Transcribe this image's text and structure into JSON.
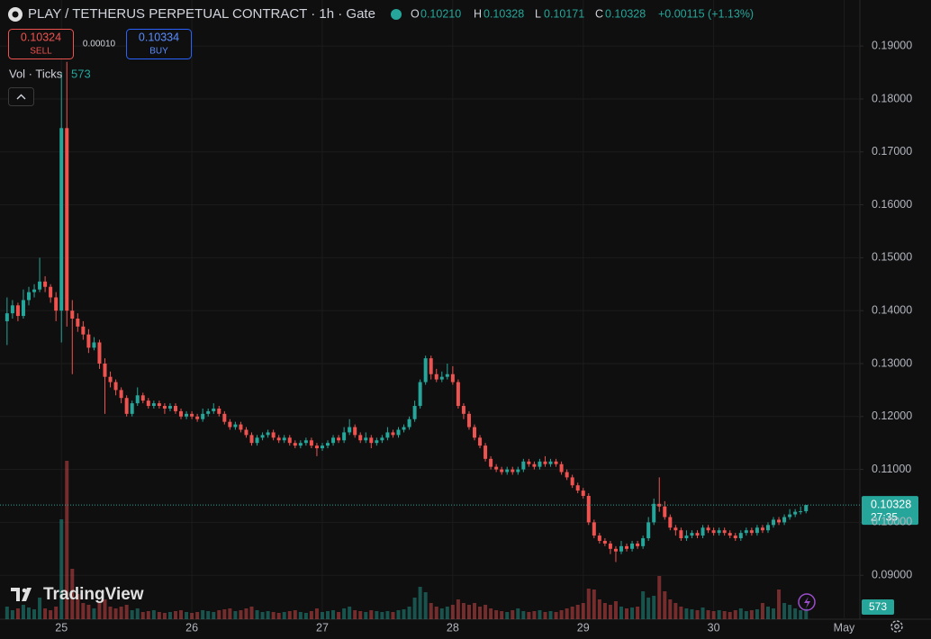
{
  "header": {
    "title": "PLAY / TETHERUS PERPETUAL CONTRACT · 1h · Gate",
    "ohlc": [
      {
        "label": "O",
        "value": "0.10210"
      },
      {
        "label": "H",
        "value": "0.10328"
      },
      {
        "label": "L",
        "value": "0.10171"
      },
      {
        "label": "C",
        "value": "0.10328"
      }
    ],
    "change": "+0.00115 (+1.13%)"
  },
  "trade": {
    "sell_price": "0.10324",
    "sell_label": "SELL",
    "spread": "0.00010",
    "buy_price": "0.10334",
    "buy_label": "BUY"
  },
  "volume_legend": "Vol · Ticks",
  "logo": "TradingView",
  "countdown": "27:35",
  "chart_data": {
    "type": "candlestick",
    "ohlc": [
      [
        0.138,
        0.1425,
        0.1335,
        0.1395
      ],
      [
        0.1395,
        0.142,
        0.1385,
        0.141
      ],
      [
        0.141,
        0.1415,
        0.138,
        0.139
      ],
      [
        0.139,
        0.144,
        0.1385,
        0.142
      ],
      [
        0.142,
        0.1445,
        0.141,
        0.1435
      ],
      [
        0.1435,
        0.145,
        0.1425,
        0.144
      ],
      [
        0.144,
        0.15,
        0.1435,
        0.1455
      ],
      [
        0.1455,
        0.1465,
        0.1435,
        0.1445
      ],
      [
        0.1445,
        0.145,
        0.1415,
        0.1425
      ],
      [
        0.1425,
        0.1435,
        0.138,
        0.14
      ],
      [
        0.14,
        0.185,
        0.134,
        0.1745
      ],
      [
        0.1745,
        0.187,
        0.137,
        0.14
      ],
      [
        0.14,
        0.142,
        0.128,
        0.1385
      ],
      [
        0.1385,
        0.1395,
        0.136,
        0.137
      ],
      [
        0.137,
        0.138,
        0.1345,
        0.1355
      ],
      [
        0.1355,
        0.1365,
        0.132,
        0.133
      ],
      [
        0.133,
        0.135,
        0.1325,
        0.134
      ],
      [
        0.134,
        0.1345,
        0.129,
        0.13
      ],
      [
        0.13,
        0.131,
        0.1205,
        0.1275
      ],
      [
        0.1275,
        0.1285,
        0.1255,
        0.1265
      ],
      [
        0.1265,
        0.127,
        0.124,
        0.125
      ],
      [
        0.125,
        0.1255,
        0.1225,
        0.1235
      ],
      [
        0.1235,
        0.124,
        0.12,
        0.1205
      ],
      [
        0.1205,
        0.123,
        0.12,
        0.1225
      ],
      [
        0.1225,
        0.1255,
        0.122,
        0.124
      ],
      [
        0.124,
        0.1245,
        0.1225,
        0.123
      ],
      [
        0.123,
        0.1235,
        0.1215,
        0.122
      ],
      [
        0.122,
        0.123,
        0.1215,
        0.1225
      ],
      [
        0.1225,
        0.123,
        0.1215,
        0.122
      ],
      [
        0.122,
        0.1225,
        0.1205,
        0.1215
      ],
      [
        0.1215,
        0.1225,
        0.121,
        0.122
      ],
      [
        0.122,
        0.1225,
        0.1205,
        0.121
      ],
      [
        0.121,
        0.1215,
        0.1195,
        0.12
      ],
      [
        0.12,
        0.121,
        0.1195,
        0.1205
      ],
      [
        0.1205,
        0.121,
        0.1195,
        0.12
      ],
      [
        0.12,
        0.1205,
        0.119,
        0.1195
      ],
      [
        0.1195,
        0.1215,
        0.119,
        0.1205
      ],
      [
        0.1205,
        0.1215,
        0.12,
        0.121
      ],
      [
        0.121,
        0.1225,
        0.1205,
        0.1215
      ],
      [
        0.1215,
        0.122,
        0.12,
        0.1205
      ],
      [
        0.1205,
        0.121,
        0.1185,
        0.119
      ],
      [
        0.119,
        0.1195,
        0.1175,
        0.118
      ],
      [
        0.118,
        0.119,
        0.1175,
        0.1185
      ],
      [
        0.1185,
        0.119,
        0.117,
        0.1175
      ],
      [
        0.1175,
        0.118,
        0.116,
        0.1165
      ],
      [
        0.1165,
        0.117,
        0.1145,
        0.115
      ],
      [
        0.115,
        0.1165,
        0.1145,
        0.116
      ],
      [
        0.116,
        0.117,
        0.1155,
        0.1165
      ],
      [
        0.1165,
        0.1175,
        0.116,
        0.117
      ],
      [
        0.117,
        0.1175,
        0.1155,
        0.116
      ],
      [
        0.116,
        0.1165,
        0.115,
        0.1155
      ],
      [
        0.1155,
        0.1165,
        0.115,
        0.116
      ],
      [
        0.116,
        0.1165,
        0.1145,
        0.115
      ],
      [
        0.115,
        0.1155,
        0.114,
        0.1145
      ],
      [
        0.1145,
        0.1155,
        0.114,
        0.115
      ],
      [
        0.115,
        0.116,
        0.1145,
        0.1155
      ],
      [
        0.1155,
        0.116,
        0.114,
        0.1145
      ],
      [
        0.1145,
        0.115,
        0.1125,
        0.114
      ],
      [
        0.114,
        0.115,
        0.1135,
        0.1145
      ],
      [
        0.1145,
        0.1155,
        0.114,
        0.115
      ],
      [
        0.115,
        0.1165,
        0.1145,
        0.116
      ],
      [
        0.116,
        0.1165,
        0.115,
        0.1155
      ],
      [
        0.1155,
        0.118,
        0.115,
        0.117
      ],
      [
        0.117,
        0.1195,
        0.1165,
        0.118
      ],
      [
        0.118,
        0.1185,
        0.116,
        0.1165
      ],
      [
        0.1165,
        0.117,
        0.115,
        0.1155
      ],
      [
        0.1155,
        0.117,
        0.115,
        0.116
      ],
      [
        0.116,
        0.1165,
        0.114,
        0.115
      ],
      [
        0.115,
        0.116,
        0.1145,
        0.1155
      ],
      [
        0.1155,
        0.1165,
        0.115,
        0.116
      ],
      [
        0.116,
        0.118,
        0.1155,
        0.117
      ],
      [
        0.117,
        0.1175,
        0.116,
        0.1165
      ],
      [
        0.1165,
        0.118,
        0.116,
        0.1175
      ],
      [
        0.1175,
        0.1185,
        0.117,
        0.118
      ],
      [
        0.118,
        0.12,
        0.1175,
        0.1195
      ],
      [
        0.1195,
        0.123,
        0.119,
        0.122
      ],
      [
        0.122,
        0.127,
        0.1215,
        0.1265
      ],
      [
        0.1265,
        0.1315,
        0.126,
        0.131
      ],
      [
        0.131,
        0.1315,
        0.127,
        0.128
      ],
      [
        0.128,
        0.129,
        0.1265,
        0.127
      ],
      [
        0.127,
        0.1285,
        0.1265,
        0.1275
      ],
      [
        0.1275,
        0.13,
        0.127,
        0.128
      ],
      [
        0.128,
        0.1295,
        0.126,
        0.1265
      ],
      [
        0.1265,
        0.127,
        0.1215,
        0.122
      ],
      [
        0.122,
        0.1225,
        0.1195,
        0.1205
      ],
      [
        0.1205,
        0.121,
        0.1175,
        0.118
      ],
      [
        0.118,
        0.1185,
        0.1155,
        0.116
      ],
      [
        0.116,
        0.1165,
        0.114,
        0.1145
      ],
      [
        0.1145,
        0.115,
        0.1115,
        0.112
      ],
      [
        0.112,
        0.1125,
        0.11,
        0.1105
      ],
      [
        0.1105,
        0.111,
        0.1095,
        0.11
      ],
      [
        0.11,
        0.1105,
        0.109,
        0.1095
      ],
      [
        0.1095,
        0.1105,
        0.109,
        0.11
      ],
      [
        0.11,
        0.1105,
        0.109,
        0.1095
      ],
      [
        0.1095,
        0.1105,
        0.109,
        0.11
      ],
      [
        0.11,
        0.112,
        0.1095,
        0.1115
      ],
      [
        0.1115,
        0.112,
        0.1105,
        0.111
      ],
      [
        0.111,
        0.1115,
        0.11,
        0.1105
      ],
      [
        0.1105,
        0.112,
        0.11,
        0.1115
      ],
      [
        0.1115,
        0.1125,
        0.1105,
        0.111
      ],
      [
        0.111,
        0.112,
        0.1105,
        0.1115
      ],
      [
        0.1115,
        0.112,
        0.1105,
        0.111
      ],
      [
        0.111,
        0.1115,
        0.109,
        0.1095
      ],
      [
        0.1095,
        0.11,
        0.108,
        0.1085
      ],
      [
        0.1085,
        0.109,
        0.1065,
        0.107
      ],
      [
        0.107,
        0.1075,
        0.1055,
        0.106
      ],
      [
        0.106,
        0.1065,
        0.1045,
        0.105
      ],
      [
        0.105,
        0.1055,
        0.0995,
        0.1
      ],
      [
        0.1,
        0.1005,
        0.097,
        0.0975
      ],
      [
        0.0975,
        0.098,
        0.096,
        0.0965
      ],
      [
        0.0965,
        0.097,
        0.0955,
        0.096
      ],
      [
        0.096,
        0.0965,
        0.094,
        0.095
      ],
      [
        0.095,
        0.0955,
        0.0925,
        0.0945
      ],
      [
        0.0945,
        0.0965,
        0.094,
        0.0955
      ],
      [
        0.0955,
        0.096,
        0.0945,
        0.095
      ],
      [
        0.095,
        0.0965,
        0.0945,
        0.096
      ],
      [
        0.096,
        0.0965,
        0.095,
        0.0955
      ],
      [
        0.0955,
        0.0975,
        0.095,
        0.097
      ],
      [
        0.097,
        0.101,
        0.0965,
        0.1
      ],
      [
        0.1,
        0.1045,
        0.0995,
        0.1035
      ],
      [
        0.1035,
        0.1085,
        0.102,
        0.103
      ],
      [
        0.103,
        0.104,
        0.1005,
        0.101
      ],
      [
        0.101,
        0.1015,
        0.0985,
        0.099
      ],
      [
        0.099,
        0.0995,
        0.0975,
        0.0985
      ],
      [
        0.0985,
        0.099,
        0.0965,
        0.097
      ],
      [
        0.097,
        0.0985,
        0.0965,
        0.0975
      ],
      [
        0.0975,
        0.0985,
        0.097,
        0.098
      ],
      [
        0.098,
        0.0985,
        0.097,
        0.0975
      ],
      [
        0.0975,
        0.0995,
        0.097,
        0.099
      ],
      [
        0.099,
        0.0995,
        0.098,
        0.0985
      ],
      [
        0.0985,
        0.099,
        0.0975,
        0.098
      ],
      [
        0.098,
        0.099,
        0.0975,
        0.0985
      ],
      [
        0.0985,
        0.099,
        0.0975,
        0.098
      ],
      [
        0.098,
        0.0985,
        0.097,
        0.0975
      ],
      [
        0.0975,
        0.098,
        0.0965,
        0.097
      ],
      [
        0.097,
        0.0985,
        0.0965,
        0.098
      ],
      [
        0.098,
        0.099,
        0.0975,
        0.0985
      ],
      [
        0.0985,
        0.099,
        0.0975,
        0.098
      ],
      [
        0.098,
        0.0995,
        0.0975,
        0.099
      ],
      [
        0.099,
        0.0995,
        0.098,
        0.0985
      ],
      [
        0.0985,
        0.1,
        0.098,
        0.0995
      ],
      [
        0.0995,
        0.101,
        0.099,
        0.1005
      ],
      [
        0.1005,
        0.101,
        0.0995,
        0.1
      ],
      [
        0.1,
        0.1015,
        0.0995,
        0.101
      ],
      [
        0.101,
        0.1025,
        0.1005,
        0.1015
      ],
      [
        0.1015,
        0.1025,
        0.101,
        0.102
      ],
      [
        0.102,
        0.103,
        0.1015,
        0.1021
      ],
      [
        0.1021,
        0.10328,
        0.10171,
        0.10328
      ]
    ],
    "volume": [
      700,
      500,
      600,
      800,
      650,
      550,
      1200,
      600,
      500,
      700,
      5550,
      8800,
      2800,
      1400,
      900,
      800,
      600,
      900,
      1100,
      700,
      600,
      700,
      800,
      500,
      600,
      400,
      450,
      500,
      400,
      350,
      400,
      450,
      500,
      400,
      350,
      400,
      500,
      450,
      400,
      500,
      550,
      600,
      450,
      500,
      600,
      700,
      500,
      400,
      450,
      400,
      350,
      400,
      450,
      500,
      400,
      350,
      450,
      600,
      400,
      450,
      500,
      400,
      600,
      700,
      500,
      450,
      400,
      500,
      450,
      400,
      450,
      400,
      500,
      550,
      700,
      1200,
      1800,
      1500,
      900,
      700,
      600,
      700,
      800,
      1100,
      900,
      800,
      900,
      700,
      800,
      600,
      500,
      450,
      400,
      500,
      600,
      450,
      400,
      450,
      500,
      400,
      450,
      400,
      500,
      600,
      700,
      800,
      900,
      1700,
      1650,
      1100,
      900,
      800,
      1000,
      700,
      600,
      650,
      700,
      1550,
      1200,
      1300,
      2400,
      1550,
      1100,
      900,
      700,
      600,
      550,
      500,
      650,
      500,
      450,
      500,
      450,
      400,
      500,
      600,
      450,
      500,
      550,
      900,
      700,
      600,
      1650,
      900,
      800,
      600,
      500,
      573
    ],
    "xlim": [
      -1.3,
      156.9
    ],
    "xticks": [
      {
        "value": 10,
        "label": "25"
      },
      {
        "value": 34,
        "label": "26"
      },
      {
        "value": 58,
        "label": "27"
      },
      {
        "value": 82,
        "label": "28"
      },
      {
        "value": 106,
        "label": "29"
      },
      {
        "value": 130,
        "label": "30"
      },
      {
        "value": 154,
        "label": "May"
      }
    ],
    "ylim": [
      0.0817,
      0.1987
    ],
    "yticks": [
      {
        "value": 0.09,
        "label": "0.09000"
      },
      {
        "value": 0.1,
        "label": "0.10000"
      },
      {
        "value": 0.11,
        "label": "0.11000"
      },
      {
        "value": 0.12,
        "label": "0.12000"
      },
      {
        "value": 0.13,
        "label": "0.13000"
      },
      {
        "value": 0.14,
        "label": "0.14000"
      },
      {
        "value": 0.15,
        "label": "0.15000"
      },
      {
        "value": 0.16,
        "label": "0.16000"
      },
      {
        "value": 0.17,
        "label": "0.17000"
      },
      {
        "value": 0.18,
        "label": "0.18000"
      },
      {
        "value": 0.19,
        "label": "0.19000"
      }
    ],
    "volume_lim": [
      0,
      10000
    ],
    "up_color": "#26a69a",
    "down_color": "#ef5350"
  }
}
